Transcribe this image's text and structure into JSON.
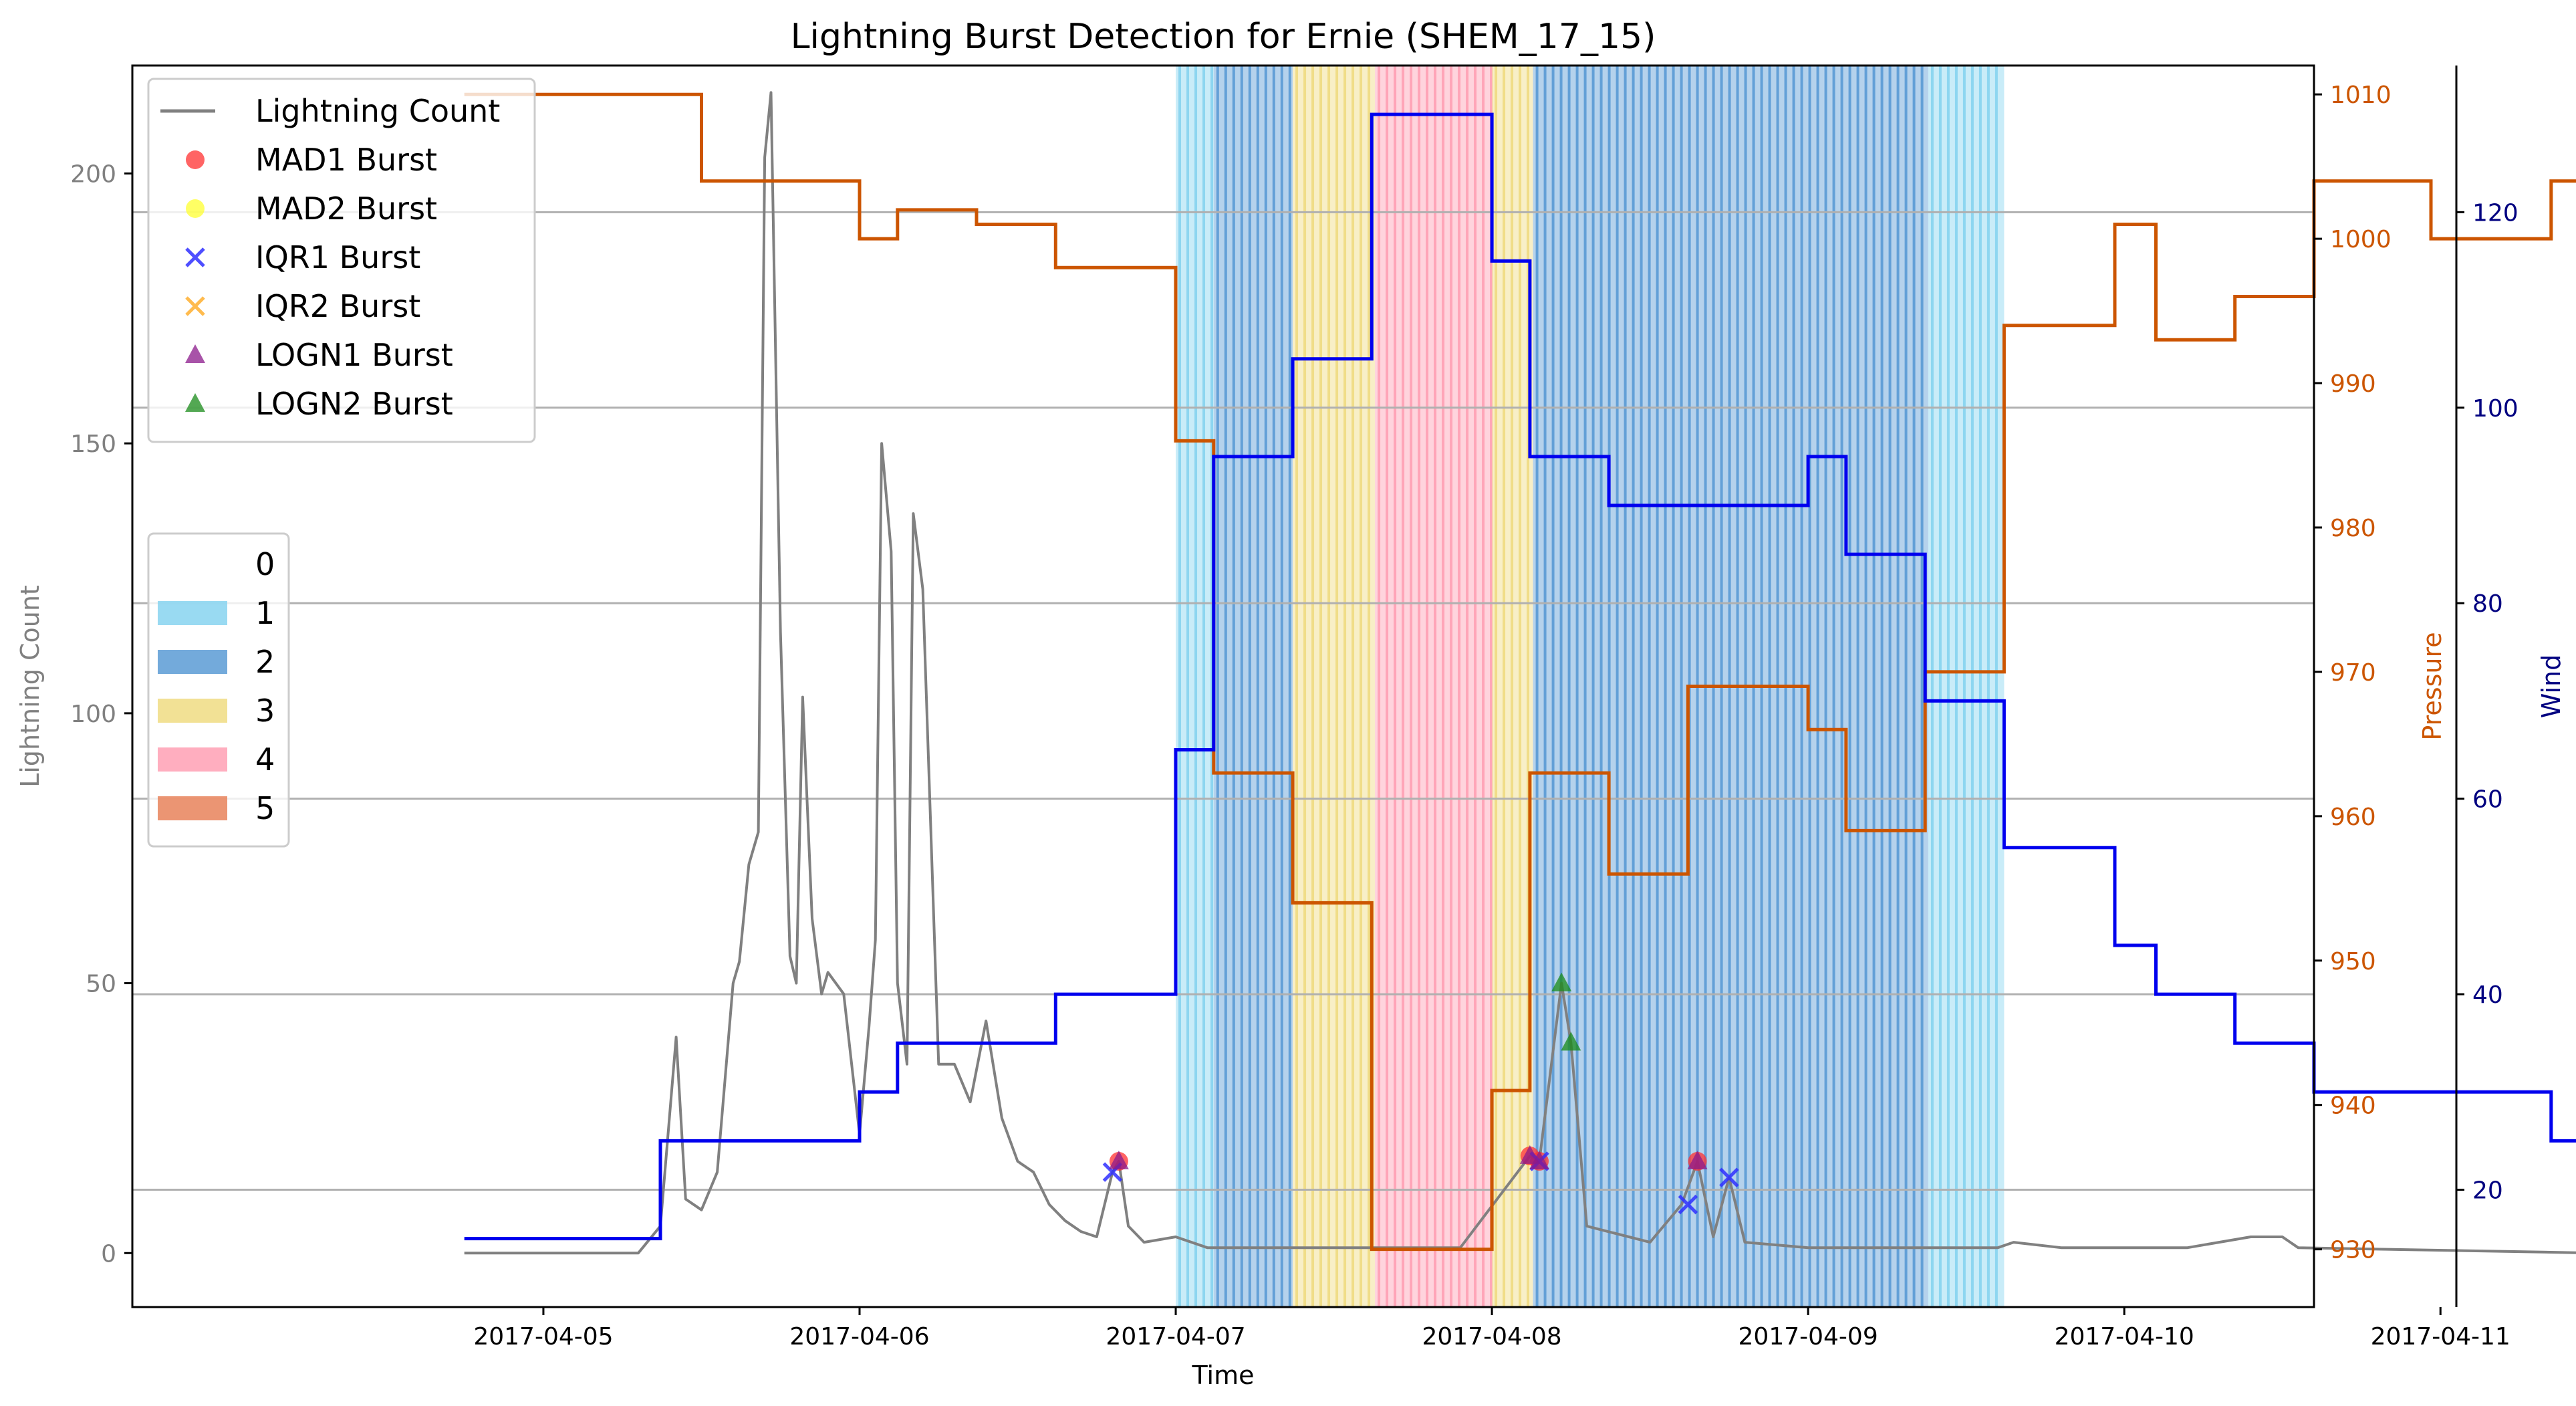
{
  "chart_data": {
    "type": "line",
    "title": "Lightning Burst Detection for Ernie (SHEM_17_15)",
    "xlabel": "Time",
    "ylabel_left": "Lightning Count",
    "ylabel_pressure": "Pressure",
    "ylabel_wind": "Wind",
    "xlim_days": [
      3.7,
      10.6
    ],
    "x_base_date": "2017-04-04",
    "x_ticks": [
      {
        "label": "2017-04-05",
        "value": 5
      },
      {
        "label": "2017-04-06",
        "value": 6
      },
      {
        "label": "2017-04-07",
        "value": 7
      },
      {
        "label": "2017-04-08",
        "value": 8
      },
      {
        "label": "2017-04-09",
        "value": 9
      },
      {
        "label": "2017-04-10",
        "value": 10
      },
      {
        "label": "2017-04-11",
        "value": 11
      }
    ],
    "ylim_left": [
      -10,
      220
    ],
    "yticks_left": [
      0,
      50,
      100,
      150,
      200
    ],
    "ylim_pressure": [
      926,
      1012
    ],
    "yticks_pressure": [
      930,
      940,
      950,
      960,
      970,
      980,
      990,
      1000,
      1010
    ],
    "ylim_wind": [
      8,
      135
    ],
    "yticks_wind": [
      20,
      40,
      60,
      80,
      100,
      120
    ],
    "grid": "horizontal at wind ticks",
    "colors": {
      "lightning": "#808080",
      "pressure": "#cc5500",
      "wind": "#0000ee",
      "left_axis": "#808080",
      "pressure_axis": "#cc5500",
      "wind_axis": "#000080",
      "cat1": "#87d4f0",
      "cat2": "#5b9bd5",
      "cat3": "#f0dc82",
      "cat4": "#ffa0b4",
      "cat5": "#e8825a"
    },
    "category_spans": [
      {
        "start": 7.0,
        "end": 7.12,
        "cat": 1
      },
      {
        "start": 7.12,
        "end": 7.37,
        "cat": 2
      },
      {
        "start": 7.37,
        "end": 7.63,
        "cat": 3
      },
      {
        "start": 7.63,
        "end": 8.0,
        "cat": 4
      },
      {
        "start": 8.0,
        "end": 8.13,
        "cat": 3
      },
      {
        "start": 8.13,
        "end": 9.38,
        "cat": 2
      },
      {
        "start": 9.38,
        "end": 9.62,
        "cat": 1
      }
    ],
    "pressure": {
      "name": "Pressure",
      "x": [
        4.75,
        5.5,
        5.5,
        6.0,
        6.0,
        6.12,
        6.12,
        6.37,
        6.37,
        6.62,
        6.62,
        7.0,
        7.0,
        7.12,
        7.12,
        7.37,
        7.37,
        7.62,
        7.62,
        8.0,
        8.0,
        8.12,
        8.12,
        8.37,
        8.37,
        8.62,
        8.62,
        9.0,
        9.0,
        9.12,
        9.12,
        9.37,
        9.37,
        9.62,
        9.62,
        9.97,
        9.97,
        10.1,
        10.1,
        10.35,
        10.35,
        10.6,
        10.6,
        10.97,
        10.97,
        11.35,
        11.35,
        11.5
      ],
      "values": [
        1010,
        1010,
        1004,
        1004,
        1000,
        1000,
        1002,
        1002,
        1001,
        1001,
        998,
        998,
        986,
        986,
        963,
        963,
        954,
        954,
        930,
        930,
        941,
        941,
        963,
        963,
        956,
        956,
        969,
        969,
        966,
        966,
        959,
        959,
        970,
        970,
        994,
        994,
        1001,
        1001,
        993,
        993,
        996,
        996,
        1004,
        1004,
        1000,
        1000,
        1004,
        1004
      ]
    },
    "wind": {
      "name": "Wind",
      "x": [
        4.75,
        5.37,
        5.37,
        6.0,
        6.0,
        6.12,
        6.12,
        6.62,
        6.62,
        7.0,
        7.0,
        7.12,
        7.12,
        7.37,
        7.37,
        7.62,
        7.62,
        8.0,
        8.0,
        8.12,
        8.12,
        8.37,
        8.37,
        9.0,
        9.0,
        9.12,
        9.12,
        9.37,
        9.37,
        9.62,
        9.62,
        9.97,
        9.97,
        10.1,
        10.1,
        10.35,
        10.35,
        10.6,
        10.6,
        11.35,
        11.35,
        11.5
      ],
      "values": [
        15,
        15,
        25,
        25,
        30,
        30,
        35,
        35,
        40,
        40,
        65,
        65,
        95,
        95,
        105,
        105,
        130,
        130,
        115,
        115,
        95,
        95,
        90,
        90,
        95,
        95,
        85,
        85,
        70,
        70,
        55,
        55,
        45,
        45,
        40,
        40,
        35,
        35,
        30,
        30,
        25,
        25
      ]
    },
    "lightning": {
      "name": "Lightning Count",
      "peaks": [
        [
          4.75,
          0
        ],
        [
          5.3,
          0
        ],
        [
          5.37,
          5
        ],
        [
          5.42,
          40
        ],
        [
          5.45,
          10
        ],
        [
          5.5,
          8
        ],
        [
          5.55,
          15
        ],
        [
          5.6,
          50
        ],
        [
          5.62,
          54
        ],
        [
          5.65,
          72
        ],
        [
          5.68,
          78
        ],
        [
          5.7,
          203
        ],
        [
          5.72,
          215
        ],
        [
          5.75,
          115
        ],
        [
          5.78,
          55
        ],
        [
          5.8,
          50
        ],
        [
          5.82,
          103
        ],
        [
          5.85,
          62
        ],
        [
          5.88,
          48
        ],
        [
          5.9,
          52
        ],
        [
          5.95,
          48
        ],
        [
          6.0,
          22
        ],
        [
          6.03,
          42
        ],
        [
          6.05,
          58
        ],
        [
          6.07,
          150
        ],
        [
          6.1,
          130
        ],
        [
          6.12,
          50
        ],
        [
          6.15,
          35
        ],
        [
          6.17,
          137
        ],
        [
          6.2,
          123
        ],
        [
          6.25,
          35
        ],
        [
          6.3,
          35
        ],
        [
          6.35,
          28
        ],
        [
          6.4,
          43
        ],
        [
          6.45,
          25
        ],
        [
          6.5,
          17
        ],
        [
          6.55,
          15
        ],
        [
          6.6,
          9
        ],
        [
          6.65,
          6
        ],
        [
          6.7,
          4
        ],
        [
          6.75,
          3
        ],
        [
          6.8,
          15
        ],
        [
          6.82,
          17
        ],
        [
          6.85,
          5
        ],
        [
          6.9,
          2
        ],
        [
          7.0,
          3
        ],
        [
          7.1,
          1
        ],
        [
          7.3,
          1
        ],
        [
          7.5,
          1
        ],
        [
          7.7,
          1
        ],
        [
          7.9,
          1
        ],
        [
          8.12,
          18
        ],
        [
          8.15,
          17
        ],
        [
          8.22,
          50
        ],
        [
          8.25,
          39
        ],
        [
          8.3,
          5
        ],
        [
          8.5,
          2
        ],
        [
          8.6,
          9
        ],
        [
          8.65,
          17
        ],
        [
          8.7,
          3
        ],
        [
          8.75,
          14
        ],
        [
          8.8,
          2
        ],
        [
          9.0,
          1
        ],
        [
          9.3,
          1
        ],
        [
          9.6,
          1
        ],
        [
          9.65,
          2
        ],
        [
          9.8,
          1
        ],
        [
          10.0,
          1
        ],
        [
          10.2,
          1
        ],
        [
          10.4,
          3
        ],
        [
          10.45,
          3
        ],
        [
          10.5,
          3
        ],
        [
          10.55,
          1
        ],
        [
          11.5,
          0
        ]
      ]
    },
    "bursts": [
      {
        "method": "MAD1 Burst",
        "x": [
          6.82,
          8.15,
          8.65,
          8.12
        ]
      },
      {
        "method": "IQR1 Burst",
        "x": [
          6.8,
          8.15,
          8.62,
          8.75
        ]
      },
      {
        "method": "LOGN1 Burst",
        "x": [
          6.82,
          8.12,
          8.15,
          8.65
        ]
      },
      {
        "method": "LOGN2 Burst",
        "x": [
          8.22,
          8.25
        ]
      }
    ],
    "legend_series": [
      {
        "label": "Lightning Count",
        "marker": "line",
        "color": "#808080"
      },
      {
        "label": "MAD1 Burst",
        "marker": "circle",
        "color": "#ff3030"
      },
      {
        "label": "MAD2 Burst",
        "marker": "circle",
        "color": "#ffff30"
      },
      {
        "label": "IQR1 Burst",
        "marker": "x",
        "color": "#3030ff"
      },
      {
        "label": "IQR2 Burst",
        "marker": "x",
        "color": "#ffb030"
      },
      {
        "label": "LOGN1 Burst",
        "marker": "triangle",
        "color": "#8b1a8b"
      },
      {
        "label": "LOGN2 Burst",
        "marker": "triangle",
        "color": "#1a8b1a"
      }
    ],
    "legend_categories": [
      {
        "label": "0",
        "color": "#ffffff"
      },
      {
        "label": "1",
        "color": "#87d4f0"
      },
      {
        "label": "2",
        "color": "#5b9bd5"
      },
      {
        "label": "3",
        "color": "#f0dc82"
      },
      {
        "label": "4",
        "color": "#ffa0b4"
      },
      {
        "label": "5",
        "color": "#e8825a"
      }
    ]
  }
}
